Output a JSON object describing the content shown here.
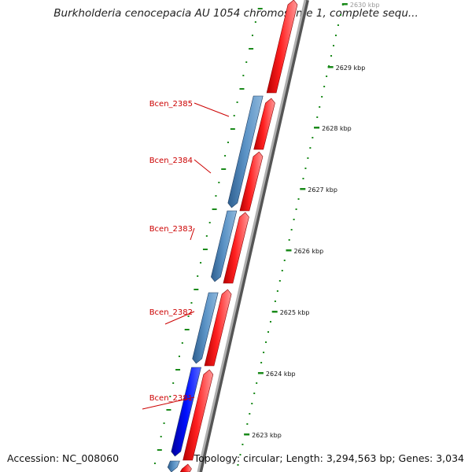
{
  "title": "Burkholderia cenocepacia AU 1054 chromosome 1, complete sequ...",
  "footer": {
    "accession": "Accession: NC_008060",
    "topology": "Topology: circular; Length: 3,294,563 bp; Genes: 3,034"
  },
  "colors": {
    "forward_gene": "#ff0000",
    "reverse_gene": "#4a82b8",
    "highlight_gene": "#0000ee",
    "backbone": "#8c8c8c",
    "tick": "#1a8a1a",
    "gene_label": "#cc0000",
    "tick_label": "#111111"
  },
  "gene_labels": [
    "Bcen_2385",
    "Bcen_2384",
    "Bcen_2383",
    "Bcen_2382",
    "Bcen_2381"
  ],
  "tick_labels": [
    "2630 kbp",
    "2629 kbp",
    "2628 kbp",
    "2627 kbp",
    "2626 kbp",
    "2625 kbp",
    "2624 kbp",
    "2623 kbp"
  ]
}
